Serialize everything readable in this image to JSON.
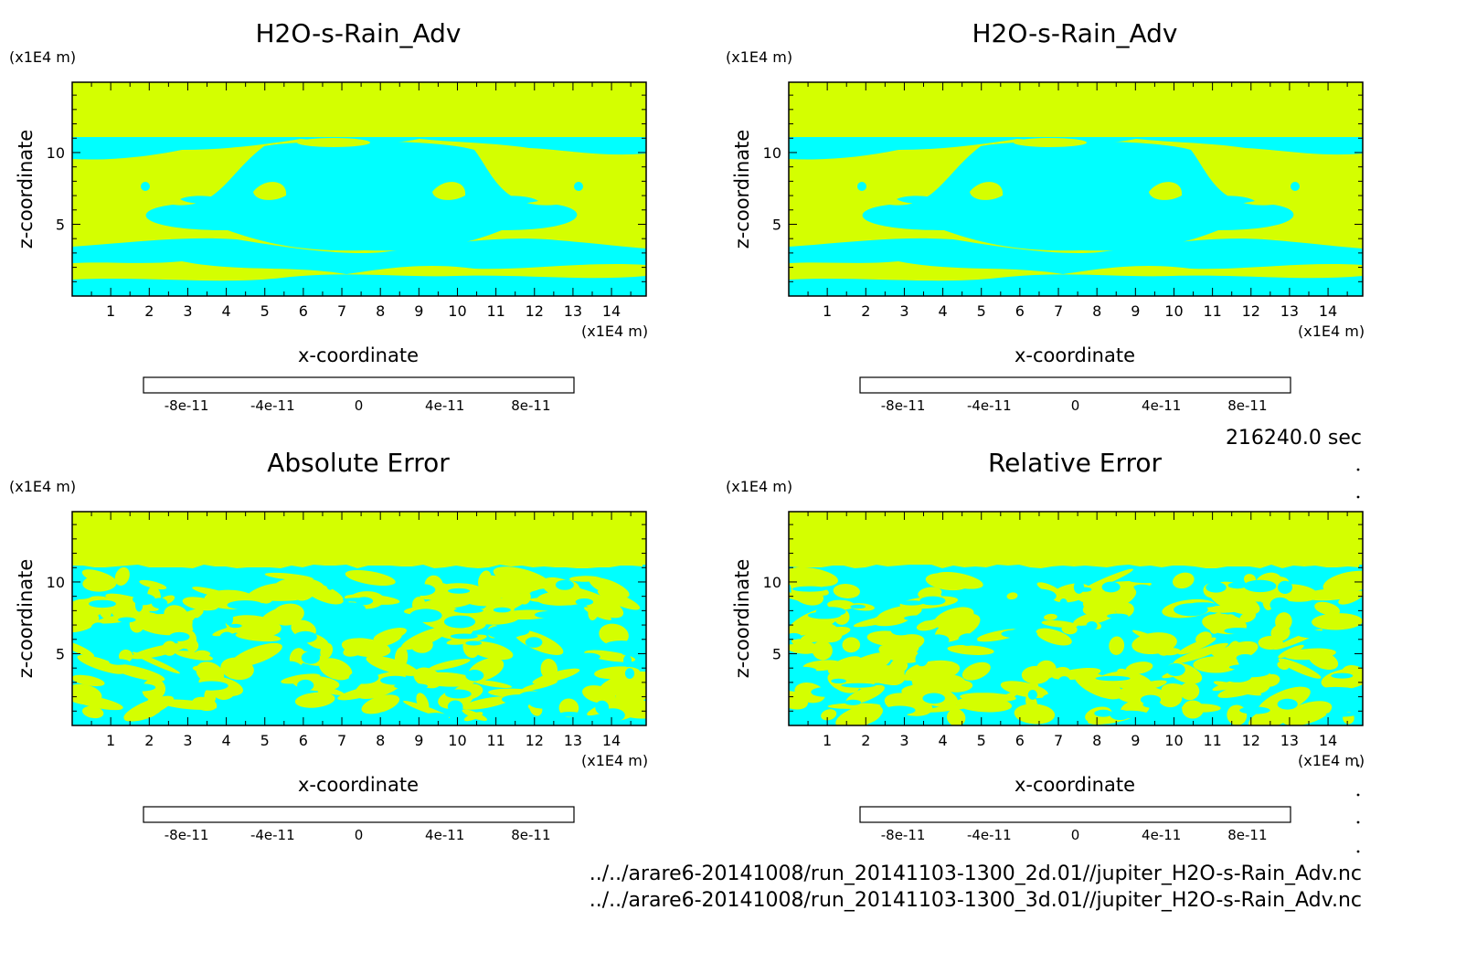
{
  "time_label": "216240.0 sec",
  "files": [
    "../../arare6-20141008/run_20141103-1300_2d.01//jupiter_H2O-s-Rain_Adv.nc",
    "../../arare6-20141008/run_20141103-1300_3d.01//jupiter_H2O-s-Rain_Adv.nc"
  ],
  "colors": {
    "upper_yellow": "#d4ff00",
    "cyan": "#00ffff",
    "colorbar": [
      "#8000b0",
      "#0000d0",
      "#0040ff",
      "#0090ff",
      "#00ffff",
      "#d4ff00",
      "#ffa500",
      "#ff5a00",
      "#ff1a1a",
      "#ffb0b0"
    ]
  },
  "chart_data": [
    {
      "type": "heatmap",
      "title": "H2O-s-Rain_Adv",
      "xlabel": "x-coordinate",
      "ylabel": "z-coordinate",
      "x_unit": "(x1E4 m)",
      "y_unit": "(x1E4 m)",
      "xlim": [
        0,
        14.9
      ],
      "ylim": [
        0,
        14.9
      ],
      "xticks": [
        "1",
        "2",
        "3",
        "4",
        "5",
        "6",
        "7",
        "8",
        "9",
        "10",
        "11",
        "12",
        "13",
        "14"
      ],
      "yticks": [
        "5",
        "10"
      ],
      "colorbar": {
        "range": [
          -1e-10,
          1e-10
        ],
        "labels": [
          "-8e-11",
          "-4e-11",
          "0",
          "4e-11",
          "8e-11"
        ]
      },
      "pattern": "symmetric"
    },
    {
      "type": "heatmap",
      "title": "H2O-s-Rain_Adv",
      "xlabel": "x-coordinate",
      "ylabel": "z-coordinate",
      "x_unit": "(x1E4 m)",
      "y_unit": "(x1E4 m)",
      "xlim": [
        0,
        14.9
      ],
      "ylim": [
        0,
        14.9
      ],
      "xticks": [
        "1",
        "2",
        "3",
        "4",
        "5",
        "6",
        "7",
        "8",
        "9",
        "10",
        "11",
        "12",
        "13",
        "14"
      ],
      "yticks": [
        "5",
        "10"
      ],
      "colorbar": {
        "range": [
          -1e-10,
          1e-10
        ],
        "labels": [
          "-8e-11",
          "-4e-11",
          "0",
          "4e-11",
          "8e-11"
        ]
      },
      "pattern": "symmetric"
    },
    {
      "type": "heatmap",
      "title": "Absolute Error",
      "xlabel": "x-coordinate",
      "ylabel": "z-coordinate",
      "x_unit": "(x1E4 m)",
      "y_unit": "(x1E4 m)",
      "xlim": [
        0,
        14.9
      ],
      "ylim": [
        0,
        14.9
      ],
      "xticks": [
        "1",
        "2",
        "3",
        "4",
        "5",
        "6",
        "7",
        "8",
        "9",
        "10",
        "11",
        "12",
        "13",
        "14"
      ],
      "yticks": [
        "5",
        "10"
      ],
      "colorbar": {
        "range": [
          -1e-10,
          1e-10
        ],
        "labels": [
          "-8e-11",
          "-4e-11",
          "0",
          "4e-11",
          "8e-11"
        ]
      },
      "pattern": "noisy"
    },
    {
      "type": "heatmap",
      "title": "Relative Error",
      "xlabel": "x-coordinate",
      "ylabel": "z-coordinate",
      "x_unit": "(x1E4 m)",
      "y_unit": "(x1E4 m)",
      "xlim": [
        0,
        14.9
      ],
      "ylim": [
        0,
        14.9
      ],
      "xticks": [
        "1",
        "2",
        "3",
        "4",
        "5",
        "6",
        "7",
        "8",
        "9",
        "10",
        "11",
        "12",
        "13",
        "14"
      ],
      "yticks": [
        "5",
        "10"
      ],
      "colorbar": {
        "range": [
          -1e-10,
          1e-10
        ],
        "labels": [
          "-8e-11",
          "-4e-11",
          "0",
          "4e-11",
          "8e-11"
        ]
      },
      "pattern": "noisy"
    }
  ]
}
